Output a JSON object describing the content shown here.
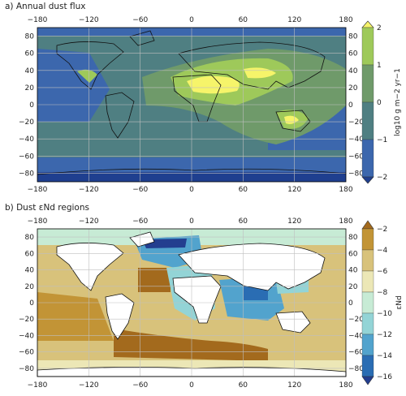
{
  "panel_a": {
    "title": "a) Annual dust flux",
    "colorbar_label": "log10 g m−2 yr−1",
    "colorbar_ticks": [
      "2",
      "1",
      "0",
      "−1",
      "−2"
    ],
    "levels": [
      {
        "range": "< −2",
        "color": "#1f3f8f"
      },
      {
        "range": "−2 to −1",
        "color": "#3c67ad"
      },
      {
        "range": "−1 to 0",
        "color": "#4f7f82"
      },
      {
        "range": "0 to 1",
        "color": "#6f9a6a"
      },
      {
        "range": "1 to 2",
        "color": "#9ec95a"
      },
      {
        "range": "> 2",
        "color": "#f6f46a"
      }
    ]
  },
  "panel_b": {
    "title": "b) Dust εNd regions",
    "colorbar_label": "εNd",
    "colorbar_ticks": [
      "−2",
      "−4",
      "−6",
      "−8",
      "−10",
      "−12",
      "−14",
      "−16"
    ],
    "levels": [
      {
        "range": "> −2",
        "color": "#a36a1d"
      },
      {
        "range": "−2 to −4",
        "color": "#c29436"
      },
      {
        "range": "−4 to −6",
        "color": "#d8c27b"
      },
      {
        "range": "−6 to −8",
        "color": "#ece7b6"
      },
      {
        "range": "−8 to −10",
        "color": "#c7ebd5"
      },
      {
        "range": "−10 to −12",
        "color": "#93d4d6"
      },
      {
        "range": "−12 to −14",
        "color": "#52a3cd"
      },
      {
        "range": "−14 to −16",
        "color": "#2a6db3"
      },
      {
        "range": "< −16",
        "color": "#233e8f"
      }
    ]
  },
  "axes": {
    "lon_ticks": [
      "−180",
      "−120",
      "−60",
      "0",
      "60",
      "120",
      "180"
    ],
    "lat_ticks": [
      "80",
      "60",
      "40",
      "20",
      "0",
      "−20",
      "−40",
      "−60",
      "−80"
    ]
  },
  "colors": {
    "land": "#ffffff",
    "coast": "#111111",
    "grid": "#bfbfbf"
  }
}
